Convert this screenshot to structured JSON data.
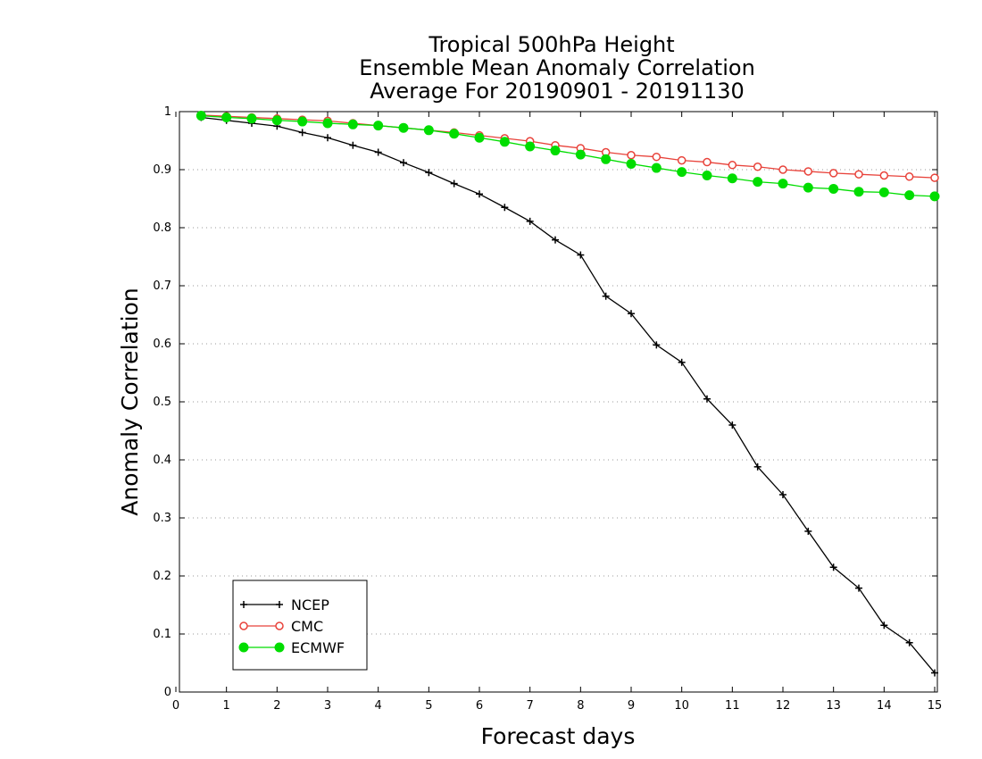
{
  "chart_data": {
    "type": "line",
    "title": [
      "Tropical 500hPa Height",
      "Ensemble Mean Anomaly Correlation",
      "Average For 20190901 - 20191130"
    ],
    "xlabel": "Forecast days",
    "ylabel": "Anomaly Correlation",
    "xlim": [
      0,
      15
    ],
    "ylim": [
      0,
      1
    ],
    "x_ticks": [
      "0",
      "1",
      "2",
      "3",
      "4",
      "5",
      "6",
      "7",
      "8",
      "9",
      "10",
      "11",
      "12",
      "13",
      "14",
      "15"
    ],
    "y_ticks": [
      "0",
      "0.1",
      "0.2",
      "0.3",
      "0.4",
      "0.5",
      "0.6",
      "0.7",
      "0.8",
      "0.9",
      "1"
    ],
    "grid": "horizontal dotted",
    "legend_position": "bottom-left",
    "x": [
      0.5,
      1,
      1.5,
      2,
      2.5,
      3,
      3.5,
      4,
      4.5,
      5,
      5.5,
      6,
      6.5,
      7,
      7.5,
      8,
      8.5,
      9,
      9.5,
      10,
      10.5,
      11,
      11.5,
      12,
      12.5,
      13,
      13.5,
      14,
      14.5,
      15
    ],
    "series": [
      {
        "name": "NCEP",
        "color": "#000000",
        "marker": "plus",
        "values": [
          0.99,
          0.985,
          0.98,
          0.975,
          0.964,
          0.955,
          0.942,
          0.93,
          0.912,
          0.895,
          0.876,
          0.858,
          0.835,
          0.811,
          0.779,
          0.753,
          0.682,
          0.652,
          0.598,
          0.568,
          0.505,
          0.46,
          0.388,
          0.34,
          0.277,
          0.215,
          0.179,
          0.115,
          0.085,
          0.033
        ]
      },
      {
        "name": "CMC",
        "color": "#e8423a",
        "marker": "open-circle",
        "values": [
          0.994,
          0.992,
          0.99,
          0.988,
          0.986,
          0.984,
          0.98,
          0.976,
          0.972,
          0.968,
          0.964,
          0.959,
          0.954,
          0.949,
          0.942,
          0.937,
          0.93,
          0.925,
          0.922,
          0.916,
          0.913,
          0.908,
          0.905,
          0.9,
          0.897,
          0.894,
          0.892,
          0.89,
          0.888,
          0.886
        ]
      },
      {
        "name": "ECMWF",
        "color": "#00dd00",
        "marker": "filled-circle",
        "values": [
          0.993,
          0.99,
          0.988,
          0.985,
          0.983,
          0.98,
          0.978,
          0.976,
          0.972,
          0.968,
          0.962,
          0.955,
          0.948,
          0.94,
          0.933,
          0.926,
          0.918,
          0.91,
          0.903,
          0.896,
          0.89,
          0.885,
          0.879,
          0.876,
          0.869,
          0.867,
          0.862,
          0.861,
          0.856,
          0.854
        ]
      }
    ]
  }
}
